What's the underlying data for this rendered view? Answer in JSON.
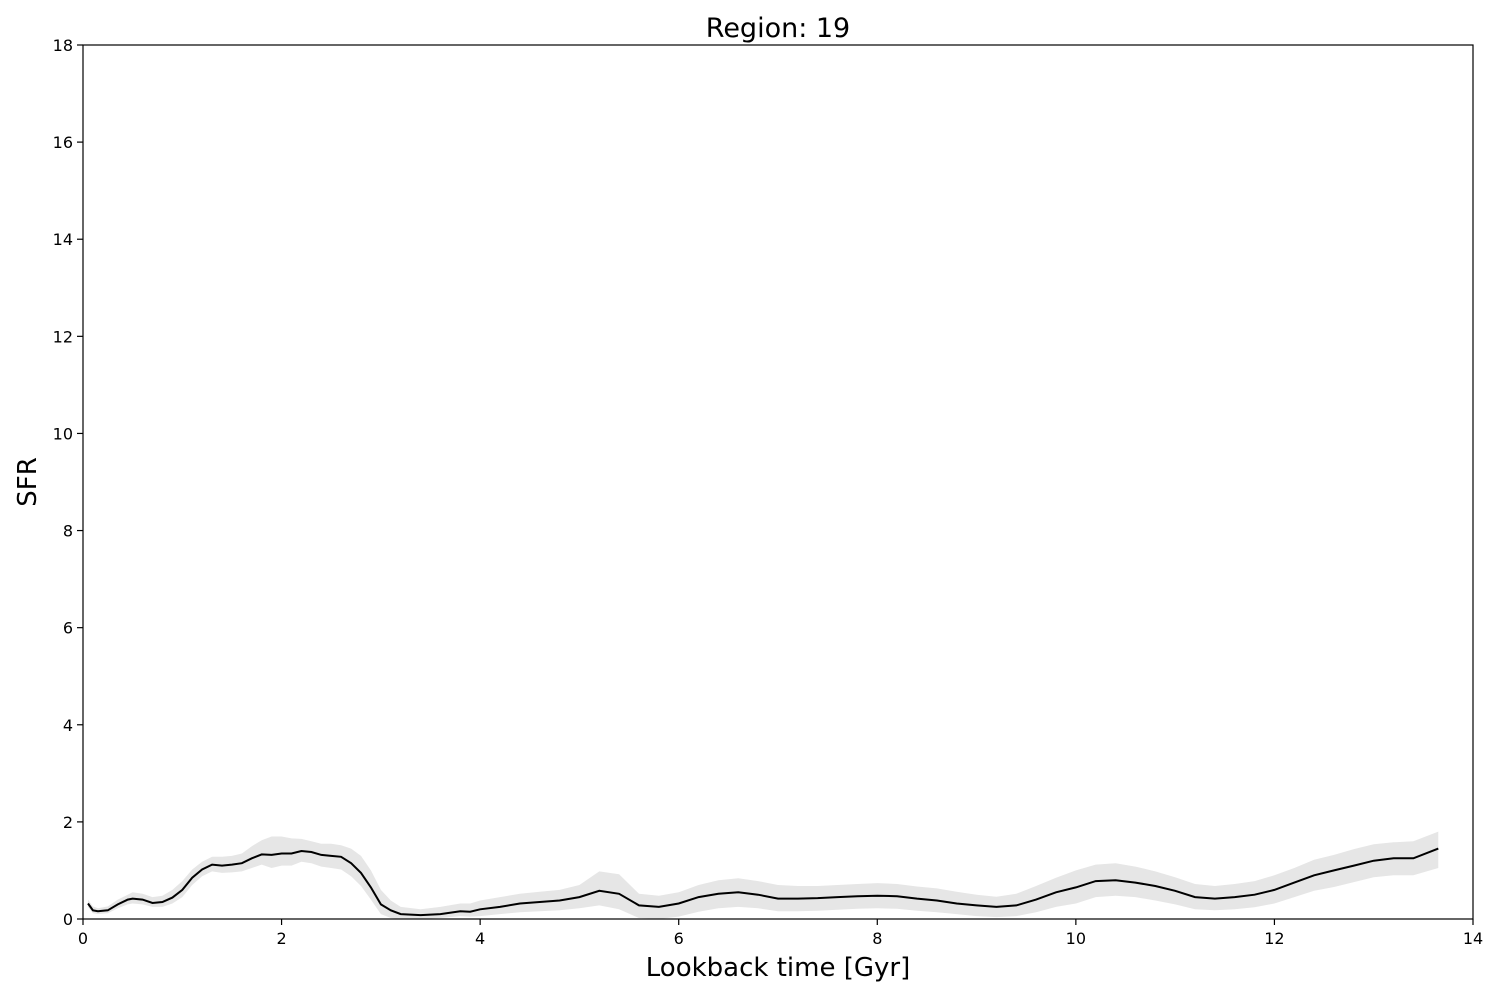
{
  "chart_data": {
    "type": "line",
    "title": "Region: 19",
    "xlabel": "Lookback time [Gyr]",
    "ylabel": "SFR",
    "xlim": [
      0,
      14
    ],
    "ylim": [
      0,
      18
    ],
    "xticks": [
      0,
      2,
      4,
      6,
      8,
      10,
      12,
      14
    ],
    "yticks": [
      0,
      2,
      4,
      6,
      8,
      10,
      12,
      14,
      16,
      18
    ],
    "grid": false,
    "colors": {
      "line": "#000000",
      "band": "#e6e6e6"
    },
    "series": [
      {
        "x": [
          0.05,
          0.1,
          0.15,
          0.25,
          0.35,
          0.45,
          0.5,
          0.6,
          0.7,
          0.8,
          0.9,
          1.0,
          1.1,
          1.2,
          1.3,
          1.4,
          1.5,
          1.6,
          1.7,
          1.8,
          1.9,
          2.0,
          2.1,
          2.2,
          2.3,
          2.4,
          2.5,
          2.6,
          2.7,
          2.8,
          2.9,
          3.0,
          3.1,
          3.2,
          3.4,
          3.6,
          3.8,
          3.9,
          4.0,
          4.2,
          4.4,
          4.6,
          4.8,
          5.0,
          5.2,
          5.4,
          5.6,
          5.8,
          6.0,
          6.2,
          6.4,
          6.6,
          6.8,
          7.0,
          7.2,
          7.4,
          7.6,
          7.8,
          8.0,
          8.2,
          8.4,
          8.6,
          8.8,
          9.0,
          9.2,
          9.4,
          9.6,
          9.8,
          10.0,
          10.2,
          10.4,
          10.6,
          10.8,
          11.0,
          11.2,
          11.4,
          11.6,
          11.8,
          12.0,
          12.2,
          12.4,
          12.6,
          12.8,
          13.0,
          13.2,
          13.4,
          13.65
        ],
        "y": [
          0.32,
          0.18,
          0.16,
          0.18,
          0.3,
          0.4,
          0.42,
          0.4,
          0.33,
          0.35,
          0.44,
          0.6,
          0.85,
          1.02,
          1.12,
          1.1,
          1.12,
          1.15,
          1.25,
          1.33,
          1.32,
          1.35,
          1.35,
          1.4,
          1.38,
          1.32,
          1.3,
          1.28,
          1.15,
          0.95,
          0.65,
          0.3,
          0.18,
          0.1,
          0.08,
          0.1,
          0.16,
          0.15,
          0.2,
          0.25,
          0.32,
          0.35,
          0.38,
          0.45,
          0.58,
          0.52,
          0.28,
          0.25,
          0.32,
          0.45,
          0.52,
          0.55,
          0.5,
          0.42,
          0.42,
          0.43,
          0.45,
          0.47,
          0.48,
          0.47,
          0.42,
          0.38,
          0.32,
          0.28,
          0.25,
          0.28,
          0.4,
          0.55,
          0.65,
          0.78,
          0.8,
          0.75,
          0.68,
          0.58,
          0.45,
          0.42,
          0.45,
          0.5,
          0.6,
          0.75,
          0.9,
          1.0,
          1.1,
          1.2,
          1.25,
          1.25,
          1.45
        ],
        "y_low": [
          0.25,
          0.12,
          0.1,
          0.12,
          0.22,
          0.3,
          0.32,
          0.3,
          0.25,
          0.25,
          0.32,
          0.45,
          0.7,
          0.88,
          0.98,
          0.95,
          0.96,
          0.98,
          1.05,
          1.12,
          1.05,
          1.1,
          1.1,
          1.18,
          1.15,
          1.08,
          1.05,
          1.02,
          0.88,
          0.68,
          0.4,
          0.1,
          0.02,
          0.0,
          0.0,
          0.02,
          0.06,
          0.05,
          0.06,
          0.1,
          0.14,
          0.16,
          0.18,
          0.22,
          0.28,
          0.2,
          0.02,
          0.0,
          0.05,
          0.15,
          0.22,
          0.25,
          0.22,
          0.16,
          0.16,
          0.17,
          0.19,
          0.21,
          0.22,
          0.21,
          0.17,
          0.14,
          0.1,
          0.06,
          0.04,
          0.06,
          0.14,
          0.25,
          0.32,
          0.45,
          0.48,
          0.45,
          0.38,
          0.3,
          0.2,
          0.18,
          0.2,
          0.24,
          0.32,
          0.45,
          0.58,
          0.66,
          0.76,
          0.86,
          0.9,
          0.9,
          1.05
        ],
        "y_high": [
          0.4,
          0.26,
          0.22,
          0.26,
          0.4,
          0.5,
          0.55,
          0.52,
          0.45,
          0.48,
          0.6,
          0.78,
          1.02,
          1.18,
          1.28,
          1.28,
          1.3,
          1.35,
          1.5,
          1.62,
          1.7,
          1.7,
          1.66,
          1.65,
          1.6,
          1.55,
          1.55,
          1.52,
          1.45,
          1.3,
          1.0,
          0.6,
          0.38,
          0.25,
          0.2,
          0.25,
          0.32,
          0.32,
          0.38,
          0.45,
          0.52,
          0.56,
          0.6,
          0.7,
          0.98,
          0.92,
          0.52,
          0.48,
          0.55,
          0.7,
          0.8,
          0.84,
          0.78,
          0.7,
          0.68,
          0.68,
          0.7,
          0.72,
          0.74,
          0.72,
          0.67,
          0.63,
          0.56,
          0.5,
          0.46,
          0.52,
          0.68,
          0.85,
          1.0,
          1.12,
          1.15,
          1.08,
          0.98,
          0.86,
          0.72,
          0.68,
          0.72,
          0.78,
          0.9,
          1.05,
          1.22,
          1.32,
          1.44,
          1.54,
          1.58,
          1.6,
          1.8
        ]
      }
    ]
  }
}
